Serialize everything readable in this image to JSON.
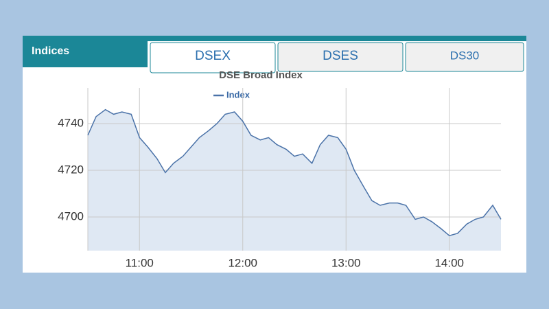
{
  "header": {
    "title": "Indices",
    "tabs": [
      "DSEX",
      "DSES",
      "DS30"
    ]
  },
  "chart_data": {
    "type": "line",
    "title": "DSE Broad Index",
    "x": [
      10.5,
      10.58,
      10.67,
      10.75,
      10.83,
      10.92,
      11.0,
      11.08,
      11.17,
      11.25,
      11.33,
      11.42,
      11.5,
      11.58,
      11.67,
      11.75,
      11.83,
      11.92,
      12.0,
      12.08,
      12.17,
      12.25,
      12.33,
      12.42,
      12.5,
      12.58,
      12.67,
      12.75,
      12.83,
      12.92,
      13.0,
      13.08,
      13.17,
      13.25,
      13.33,
      13.42,
      13.5,
      13.58,
      13.67,
      13.75,
      13.83,
      13.92,
      14.0,
      14.08,
      14.17,
      14.25,
      14.33,
      14.42,
      14.5
    ],
    "series": [
      {
        "name": "Index",
        "color": "#4a72a8",
        "values": [
          4735,
          4743,
          4746,
          4744,
          4745,
          4744,
          4734,
          4730,
          4725,
          4719,
          4723,
          4726,
          4730,
          4734,
          4737,
          4740,
          4744,
          4745,
          4741,
          4735,
          4733,
          4734,
          4731,
          4729,
          4726,
          4727,
          4723,
          4731,
          4735,
          4734,
          4729,
          4720,
          4713,
          4707,
          4705,
          4706,
          4706,
          4705,
          4699,
          4700,
          4698,
          4695,
          4692,
          4693,
          4697,
          4699,
          4700,
          4705,
          4699
        ]
      }
    ],
    "area_color": "#dfe8f3",
    "xlim": [
      10.5,
      14.5
    ],
    "xticks": [
      {
        "value": 11,
        "label": "11:00"
      },
      {
        "value": 12,
        "label": "12:00"
      },
      {
        "value": 13,
        "label": "13:00"
      },
      {
        "value": 14,
        "label": "14:00"
      }
    ],
    "ylim": [
      4685.6,
      4755.3
    ],
    "yticks": [
      4700,
      4720,
      4740
    ],
    "grid": true
  }
}
